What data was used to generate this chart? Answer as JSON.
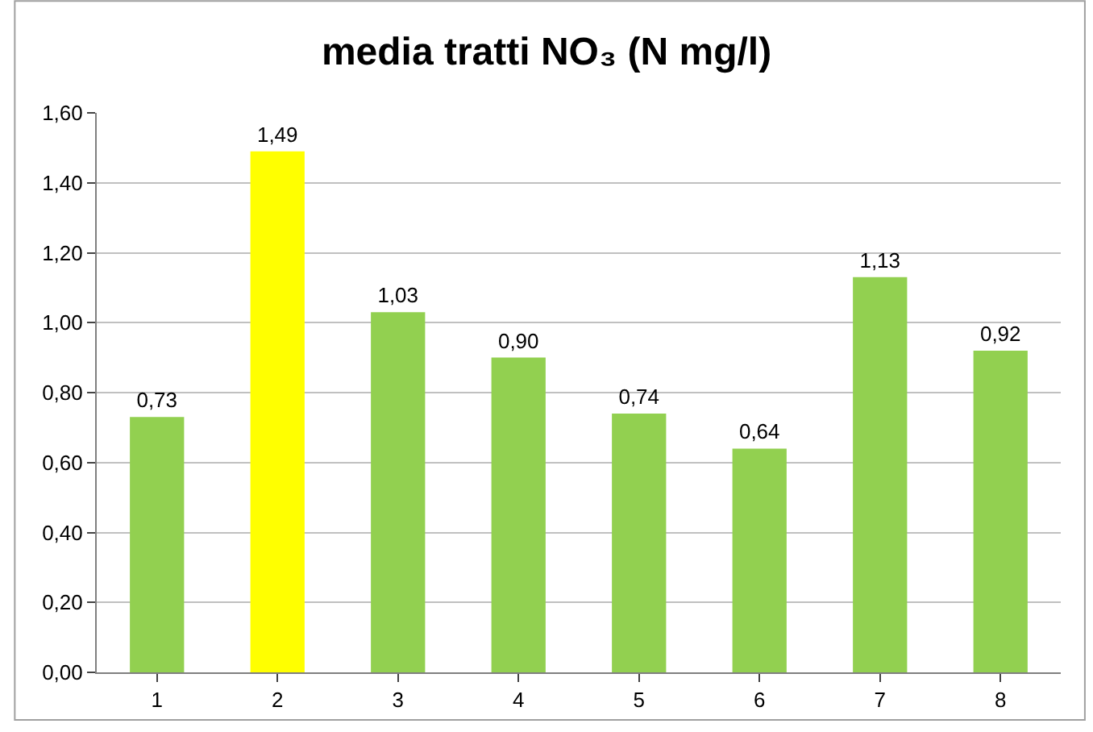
{
  "chart_data": {
    "type": "bar",
    "title": "media tratti NO₃ (N mg/l)",
    "categories": [
      "1",
      "2",
      "3",
      "4",
      "5",
      "6",
      "7",
      "8"
    ],
    "values": [
      0.73,
      1.49,
      1.03,
      0.9,
      0.74,
      0.64,
      1.13,
      0.92
    ],
    "colors": [
      "#92d050",
      "#ffff00",
      "#92d050",
      "#92d050",
      "#92d050",
      "#92d050",
      "#92d050",
      "#92d050"
    ],
    "value_labels": [
      "0,73",
      "1,49",
      "1,03",
      "0,90",
      "0,74",
      "0,64",
      "1,13",
      "0,92"
    ],
    "ylim": [
      0,
      1.6
    ],
    "yticks": [
      {
        "value": 0,
        "label": "0,00"
      },
      {
        "value": 0.2,
        "label": "0,20"
      },
      {
        "value": 0.4,
        "label": "0,40"
      },
      {
        "value": 0.6,
        "label": "0,60"
      },
      {
        "value": 0.8,
        "label": "0,80"
      },
      {
        "value": 1.0,
        "label": "1,00"
      },
      {
        "value": 1.2,
        "label": "1,20"
      },
      {
        "value": 1.4,
        "label": "1,40"
      },
      {
        "value": 1.6,
        "label": "1,60"
      }
    ],
    "grid": "y",
    "legend": false
  }
}
